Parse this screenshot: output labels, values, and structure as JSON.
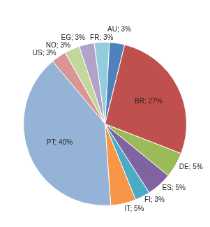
{
  "chart_data": {
    "type": "pie",
    "categories": [
      "US",
      "NO",
      "EG",
      "FR",
      "AU",
      "BR",
      "DE",
      "ES",
      "FI",
      "IT",
      "PT"
    ],
    "values": [
      3,
      3,
      3,
      3,
      3,
      27,
      5,
      5,
      3,
      5,
      40
    ],
    "value_labels": [
      "US; 3%",
      "NO; 3%",
      "EG; 3%",
      "FR; 3%",
      "AU; 3%",
      "BR; 27%",
      "DE; 5%",
      "ES; 5%",
      "FI; 3%",
      "IT; 5%",
      "PT; 40%"
    ],
    "colors": [
      "#d99594",
      "#c3d69b",
      "#b3a2c7",
      "#93cddd",
      "#4f81bd",
      "#c0504d",
      "#9bbb59",
      "#8064a2",
      "#4bacc6",
      "#f79646",
      "#95b3d7"
    ],
    "data_labels": true
  }
}
